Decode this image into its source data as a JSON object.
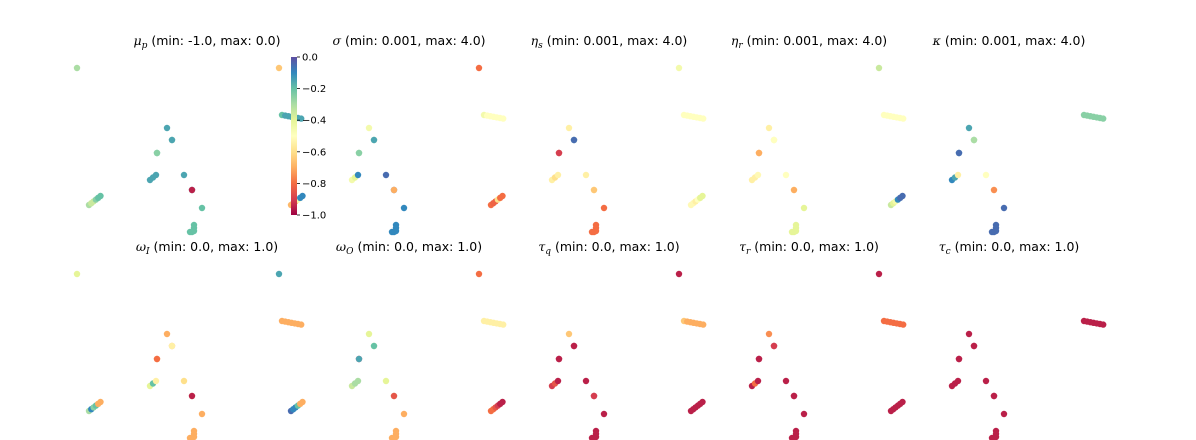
{
  "colors": {
    "colormap": "Spectral",
    "stops": [
      "#9e0142",
      "#d53e4f",
      "#f46d43",
      "#fdae61",
      "#fee08b",
      "#ffffbf",
      "#e6f598",
      "#abdda4",
      "#66c2a5",
      "#3288bd",
      "#5e4fa2"
    ]
  },
  "colorbar": {
    "ticks": [
      "0.0",
      "−0.2",
      "−0.4",
      "−0.6",
      "−0.8",
      "−1.0"
    ]
  },
  "chart_data": [
    {
      "type": "scatter",
      "symbol": "μ",
      "sub": "p",
      "range_text": " (min: -1.0, max: 0.0)",
      "vmin": -1.0,
      "vmax": 0.0,
      "values": [
        -0.2,
        -0.15,
        -0.15,
        -0.15,
        -0.15,
        -0.15,
        -0.15,
        -0.15,
        -0.2,
        -0.25,
        -0.25,
        -0.15,
        -0.15,
        -0.15,
        -0.15,
        -0.15,
        -0.15,
        -0.95,
        -0.3,
        -0.3,
        -0.35,
        -0.35,
        -0.25,
        -0.2
      ]
    },
    {
      "type": "scatter",
      "symbol": "σ",
      "sub": "",
      "range_text": " (min: 0.001, max: 4.0)",
      "vmin": 0.001,
      "vmax": 4.0,
      "values": [
        0.55,
        0.5,
        0.5,
        0.5,
        0.5,
        0.5,
        0.5,
        0.55,
        0.72,
        0.75,
        0.7,
        0.85,
        0.55,
        0.6,
        0.9,
        0.95,
        0.95,
        0.3,
        0.35,
        0.32,
        0.32,
        0.35,
        0.55,
        0.9
      ]
    },
    {
      "type": "scatter",
      "symbol": "η",
      "sub": "s",
      "range_text": " (min: 0.001, max: 4.0)",
      "vmin": 0.001,
      "vmax": 4.0,
      "values": [
        0.5,
        0.5,
        0.5,
        0.5,
        0.5,
        0.5,
        0.5,
        0.45,
        0.15,
        0.1,
        0.85,
        0.95,
        0.45,
        0.4,
        0.45,
        0.45,
        0.45,
        0.35,
        0.2,
        0.2,
        0.18,
        0.18,
        0.4,
        0.2
      ]
    },
    {
      "type": "scatter",
      "symbol": "η",
      "sub": "r",
      "range_text": " (min: 0.001, max: 4.0)",
      "vmin": 0.001,
      "vmax": 4.0,
      "values": [
        0.5,
        0.5,
        0.5,
        0.5,
        0.5,
        0.5,
        0.5,
        0.45,
        0.3,
        0.3,
        0.55,
        0.5,
        0.45,
        0.45,
        0.48,
        0.5,
        0.5,
        0.3,
        0.55,
        0.48,
        0.48,
        0.45,
        0.5,
        0.6
      ]
    },
    {
      "type": "scatter",
      "symbol": "κ",
      "sub": "",
      "range_text": " (min: 0.001, max: 4.0)",
      "vmin": 0.001,
      "vmax": 4.0,
      "values": [
        0.75,
        0.75,
        0.75,
        0.75,
        0.75,
        0.75,
        0.75,
        0.85,
        0.9,
        0.95,
        0.75,
        0.7,
        0.9,
        0.85,
        0.45,
        0.5,
        0.5,
        0.25,
        0.65,
        0.65,
        0.6,
        0.55,
        0.9,
        0.95
      ]
    },
    {
      "type": "scatter",
      "symbol": "ω",
      "sub": "I",
      "range_text": " (min: 0.0, max: 1.0)",
      "vmin": 0.0,
      "vmax": 1.0,
      "values": [
        0.3,
        0.3,
        0.3,
        0.3,
        0.3,
        0.3,
        0.3,
        0.3,
        0.3,
        0.2,
        0.3,
        0.45,
        0.6,
        0.8,
        0.45,
        0.4,
        0.45,
        0.05,
        0.6,
        0.7,
        0.9,
        0.75,
        0.8,
        0.3
      ]
    },
    {
      "type": "scatter",
      "symbol": "ω",
      "sub": "O",
      "range_text": " (min: 0.0, max: 1.0)",
      "vmin": 0.0,
      "vmax": 1.0,
      "values": [
        0.45,
        0.45,
        0.45,
        0.45,
        0.45,
        0.45,
        0.45,
        0.6,
        0.05,
        0.85,
        0.6,
        0.8,
        0.65,
        0.7,
        0.7,
        0.6,
        0.65,
        0.15,
        0.85,
        0.95,
        0.9,
        0.9,
        0.8,
        0.3
      ]
    },
    {
      "type": "scatter",
      "symbol": "τ",
      "sub": "q",
      "range_text": " (min: 0.0, max: 1.0)",
      "vmin": 0.0,
      "vmax": 1.0,
      "values": [
        0.35,
        0.3,
        0.3,
        0.3,
        0.3,
        0.3,
        0.3,
        0.35,
        0.05,
        0.05,
        0.05,
        0.05,
        0.1,
        0.15,
        0.05,
        0.05,
        0.05,
        0.1,
        0.2,
        0.2,
        0.2,
        0.15,
        0.1,
        0.05
      ]
    },
    {
      "type": "scatter",
      "symbol": "τ",
      "sub": "r",
      "range_text": " (min: 0.0, max: 1.0)",
      "vmin": 0.0,
      "vmax": 1.0,
      "values": [
        0.2,
        0.2,
        0.2,
        0.2,
        0.2,
        0.2,
        0.2,
        0.25,
        0.05,
        0.05,
        0.05,
        0.1,
        0.05,
        0.2,
        0.05,
        0.05,
        0.05,
        0.05,
        0.05,
        0.05,
        0.05,
        0.05,
        0.05,
        0.05
      ]
    },
    {
      "type": "scatter",
      "symbol": "τ",
      "sub": "c",
      "range_text": " (min: 0.0, max: 1.0)",
      "vmin": 0.0,
      "vmax": 1.0,
      "values": [
        0.05,
        0.05,
        0.05,
        0.05,
        0.05,
        0.05,
        0.05,
        0.05,
        0.05,
        0.05,
        0.05,
        0.05,
        0.05,
        0.05,
        0.05,
        0.05,
        0.05,
        0.05,
        0.05,
        0.05,
        0.05,
        0.05,
        0.05,
        0.05
      ]
    }
  ]
}
